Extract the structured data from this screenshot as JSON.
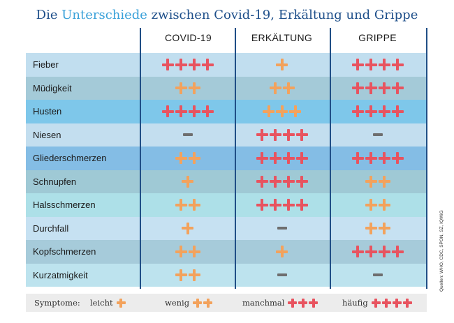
{
  "title": {
    "pre": "Die ",
    "highlight": "Unterschiede",
    "post": " zwischen Covid-19, Erkältung und Grippe"
  },
  "columns": [
    "COVID-19",
    "ERKÄLTUNG",
    "GRIPPE"
  ],
  "colors": {
    "title": "#1e4f8a",
    "highlight": "#3aa1d9",
    "orange_plus": "#f3a25c",
    "red_plus": "#e8535f",
    "dash": "#6e6e6e"
  },
  "rows": [
    {
      "label": "Fieber",
      "bg": "#c1deef",
      "values": [
        "4r",
        "1o",
        "4r"
      ]
    },
    {
      "label": "Müdigkeit",
      "bg": "#a4cad8",
      "values": [
        "2o",
        "2o",
        "4r"
      ]
    },
    {
      "label": "Husten",
      "bg": "#7ec7ea",
      "values": [
        "4r",
        "3o",
        "4r"
      ]
    },
    {
      "label": "Niesen",
      "bg": "#c3deef",
      "values": [
        "dash",
        "4r",
        "dash"
      ]
    },
    {
      "label": "Gliederschmerzen",
      "bg": "#84bde5",
      "values": [
        "2o",
        "4r",
        "4r"
      ]
    },
    {
      "label": "Schnupfen",
      "bg": "#9fc9d5",
      "values": [
        "1o",
        "4r",
        "2o"
      ]
    },
    {
      "label": "Halsschmerzen",
      "bg": "#ade0e8",
      "values": [
        "2o",
        "4r",
        "2o"
      ]
    },
    {
      "label": "Durchfall",
      "bg": "#c6e1f2",
      "values": [
        "1o",
        "dash",
        "2o"
      ]
    },
    {
      "label": "Kopfschmerzen",
      "bg": "#a6cbda",
      "values": [
        "2o",
        "1o",
        "4r"
      ]
    },
    {
      "label": "Kurzatmigkeit",
      "bg": "#bde3ee",
      "values": [
        "2o",
        "dash",
        "dash"
      ]
    }
  ],
  "legend": {
    "label": "Symptome:",
    "items": [
      {
        "text": "leicht",
        "symbol": "1o"
      },
      {
        "text": "wenig",
        "symbol": "2o"
      },
      {
        "text": "manchmal",
        "symbol": "3r"
      },
      {
        "text": "häufig",
        "symbol": "4r"
      }
    ]
  },
  "source": "Quellen: WHO, CDC, SPON, SZ, IQWiG"
}
